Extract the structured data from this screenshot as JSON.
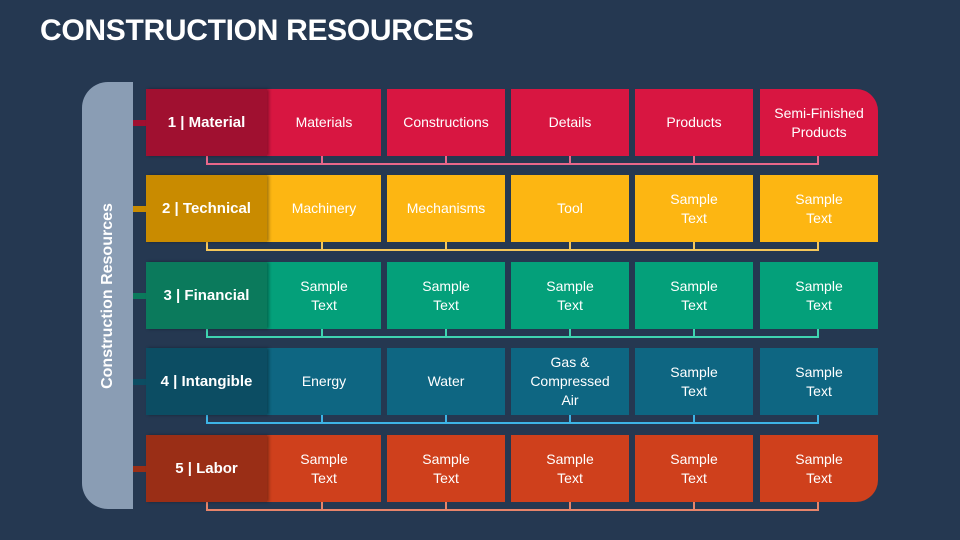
{
  "title": "CONSTRUCTION RESOURCES",
  "sidebar": {
    "label": "Construction Resources",
    "color": "#8a9db4"
  },
  "rows": [
    {
      "label": "1 | Material",
      "label_color": "#a01030",
      "cell_color": "#d81641",
      "line_color": "#e8678a",
      "cells": [
        "Materials",
        "Constructions",
        "Details",
        "Products",
        "Semi-Finished\nProducts"
      ]
    },
    {
      "label": "2 | Technical",
      "label_color": "#c98b00",
      "cell_color": "#fdb612",
      "line_color": "#f5c75a",
      "cells": [
        "Machinery",
        "Mechanisms",
        "Tool",
        "Sample\nText",
        "Sample\nText"
      ]
    },
    {
      "label": "3 | Financial",
      "label_color": "#0b7a5c",
      "cell_color": "#04a07a",
      "line_color": "#3fd4b0",
      "cells": [
        "Sample\nText",
        "Sample\nText",
        "Sample\nText",
        "Sample\nText",
        "Sample\nText"
      ]
    },
    {
      "label": "4 | Intangible",
      "label_color": "#0c4d63",
      "cell_color": "#0e6682",
      "line_color": "#3db4e6",
      "cells": [
        "Energy",
        "Water",
        "Gas &\nCompressed\nAir",
        "Sample\nText",
        "Sample\nText"
      ]
    },
    {
      "label": "5 | Labor",
      "label_color": "#9a2e16",
      "cell_color": "#cf401c",
      "line_color": "#e8846a",
      "cells": [
        "Sample\nText",
        "Sample\nText",
        "Sample\nText",
        "Sample\nText",
        "Sample\nText"
      ]
    }
  ]
}
